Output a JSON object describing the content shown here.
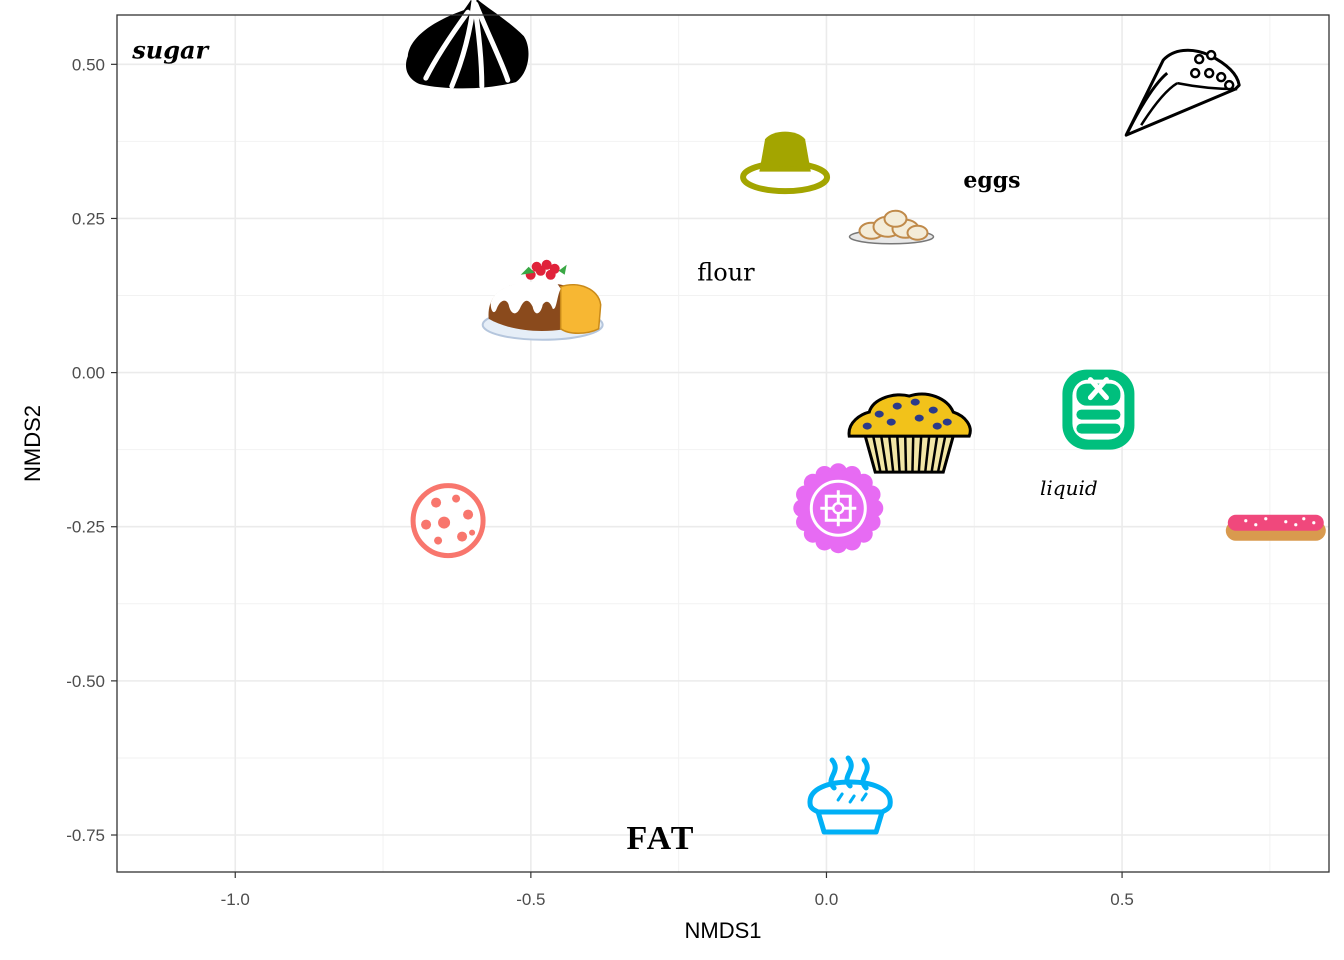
{
  "chart_data": {
    "type": "scatter",
    "xlabel": "NMDS1",
    "ylabel": "NMDS2",
    "xlim": [
      -1.2,
      0.85
    ],
    "ylim": [
      -0.81,
      0.58
    ],
    "x_ticks": [
      -1.0,
      -0.5,
      0.0,
      0.5
    ],
    "y_ticks": [
      0.5,
      0.25,
      0.0,
      -0.25,
      -0.5,
      -0.75
    ],
    "x_tick_labels": [
      "-1.0",
      "-0.5",
      "0.0",
      "0.5"
    ],
    "y_tick_labels": [
      "0.50",
      "0.25",
      "0.00",
      "-0.25",
      "-0.50",
      "-0.75"
    ],
    "grid": true,
    "words": [
      {
        "text": "sugar",
        "x": -1.11,
        "y": 0.52,
        "style": "sugar"
      },
      {
        "text": "eggs",
        "x": 0.28,
        "y": 0.31,
        "style": "eggs"
      },
      {
        "text": "flour",
        "x": -0.17,
        "y": 0.16,
        "style": "flour"
      },
      {
        "text": "liquid",
        "x": 0.41,
        "y": -0.19,
        "style": "liquid"
      },
      {
        "text": "FAT",
        "x": -0.28,
        "y": -0.76,
        "style": "fat"
      }
    ],
    "points": [
      {
        "icon": "meringue-icon",
        "x": -0.61,
        "y": 0.51
      },
      {
        "icon": "crepe-icon",
        "x": 0.6,
        "y": 0.45
      },
      {
        "icon": "flan-icon",
        "x": -0.07,
        "y": 0.33
      },
      {
        "icon": "beignets-icon",
        "x": 0.11,
        "y": 0.23
      },
      {
        "icon": "bundt-cake-icon",
        "x": -0.48,
        "y": 0.11
      },
      {
        "icon": "pancakes-icon",
        "x": 0.46,
        "y": -0.06,
        "color": "#00BF7D"
      },
      {
        "icon": "muffin-icon",
        "x": 0.14,
        "y": -0.09
      },
      {
        "icon": "mooncake-icon",
        "x": 0.02,
        "y": -0.22,
        "color": "#E76BF3"
      },
      {
        "icon": "cookie-icon",
        "x": -0.64,
        "y": -0.24,
        "color": "#F8766D"
      },
      {
        "icon": "eclair-icon",
        "x": 0.76,
        "y": -0.25
      },
      {
        "icon": "pie-icon",
        "x": 0.04,
        "y": -0.69,
        "color": "#00B0F6"
      }
    ]
  }
}
